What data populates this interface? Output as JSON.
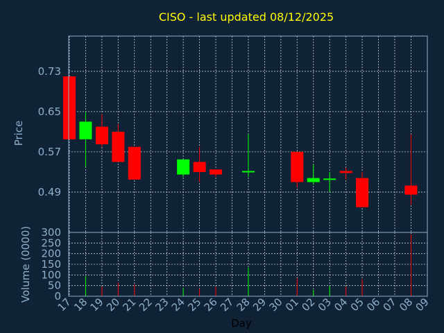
{
  "colors": {
    "background": "#102236",
    "frame": "#8fb0cc",
    "grid": "#c8d2dc",
    "up": "#00ff00",
    "down": "#ff0000",
    "title": "#ffff00",
    "tick": "#8fb0cc",
    "xlabel": "#000000"
  },
  "chart_data": {
    "type": "candlestick",
    "title": "CISO - last updated 08/12/2025",
    "xlabel": "Day",
    "ylabel_price": "Price",
    "ylabel_volume": "Volume (0000)",
    "price_ylim": [
      0.41,
      0.8
    ],
    "price_ticks": [
      "0.73",
      "0.65",
      "0.57",
      "0.49"
    ],
    "price_tick_values": [
      0.73,
      0.65,
      0.57,
      0.49
    ],
    "volume_ylim": [
      0,
      300
    ],
    "volume_ticks": [
      "300",
      "250",
      "200",
      "150",
      "100",
      "50",
      "0"
    ],
    "volume_tick_values": [
      300,
      250,
      200,
      150,
      100,
      50,
      0
    ],
    "x_labels": [
      "17",
      "18",
      "19",
      "20",
      "21",
      "22",
      "23",
      "24",
      "25",
      "26",
      "27",
      "28",
      "29",
      "30",
      "01",
      "02",
      "03",
      "04",
      "05",
      "06",
      "07",
      "08",
      "09"
    ],
    "grid": true,
    "candles": [
      {
        "day": "17",
        "open": 0.72,
        "high": 0.72,
        "low": 0.595,
        "close": 0.595,
        "volume": 0
      },
      {
        "day": "18",
        "open": 0.595,
        "high": 0.65,
        "low": 0.54,
        "close": 0.63,
        "volume": 95
      },
      {
        "day": "19",
        "open": 0.62,
        "high": 0.645,
        "low": 0.58,
        "close": 0.585,
        "volume": 45
      },
      {
        "day": "20",
        "open": 0.61,
        "high": 0.625,
        "low": 0.55,
        "close": 0.55,
        "volume": 65
      },
      {
        "day": "21",
        "open": 0.58,
        "high": 0.58,
        "low": 0.515,
        "close": 0.515,
        "volume": 55
      },
      {
        "day": "24",
        "open": 0.525,
        "high": 0.555,
        "low": 0.52,
        "close": 0.555,
        "volume": 40
      },
      {
        "day": "25",
        "open": 0.55,
        "high": 0.58,
        "low": 0.51,
        "close": 0.53,
        "volume": 35
      },
      {
        "day": "26",
        "open": 0.535,
        "high": 0.535,
        "low": 0.52,
        "close": 0.525,
        "volume": 45
      },
      {
        "day": "28",
        "open": 0.53,
        "high": 0.605,
        "low": 0.52,
        "close": 0.532,
        "volume": 135
      },
      {
        "day": "01",
        "open": 0.57,
        "high": 0.57,
        "low": 0.5,
        "close": 0.51,
        "volume": 85
      },
      {
        "day": "02",
        "open": 0.51,
        "high": 0.545,
        "low": 0.505,
        "close": 0.518,
        "volume": 30
      },
      {
        "day": "03",
        "open": 0.515,
        "high": 0.53,
        "low": 0.49,
        "close": 0.517,
        "volume": 50
      },
      {
        "day": "04",
        "open": 0.532,
        "high": 0.538,
        "low": 0.515,
        "close": 0.528,
        "volume": 45
      },
      {
        "day": "05",
        "open": 0.518,
        "high": 0.53,
        "low": 0.46,
        "close": 0.46,
        "volume": 80
      },
      {
        "day": "08",
        "open": 0.503,
        "high": 0.605,
        "low": 0.465,
        "close": 0.485,
        "volume": 290
      }
    ]
  }
}
